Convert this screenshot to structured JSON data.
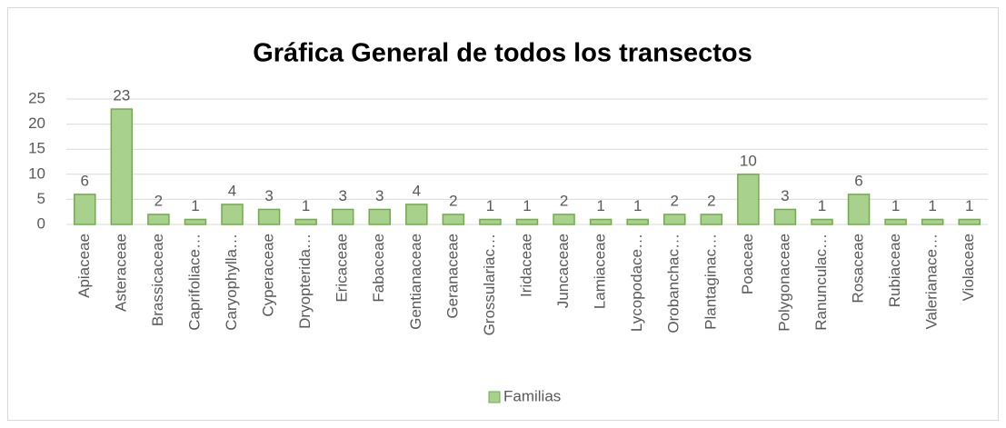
{
  "chart_data": {
    "type": "bar",
    "title": "Gráfica General de todos los transectos",
    "categories": [
      "Apiaceae",
      "Asteraceae",
      "Brassicaceae",
      "Caprifoliace…",
      "Caryophylla…",
      "Cyperaceae",
      "Dryopterida…",
      "Ericaceae",
      "Fabaceae",
      "Gentianaceae",
      "Geranaceae",
      "Grossulariac…",
      "Iridaceae",
      "Juncaceae",
      "Lamiaceae",
      "Lycopodace…",
      "Orobanchac…",
      "Plantaginac…",
      "Poaceae",
      "Polygonaceae",
      "Ranunculac…",
      "Rosaceae",
      "Rubiaceae",
      "Valerianace…",
      "Violaceae"
    ],
    "series": [
      {
        "name": "Familias",
        "color": "#a9d18e",
        "values": [
          6,
          23,
          2,
          1,
          4,
          3,
          1,
          3,
          3,
          4,
          2,
          1,
          1,
          2,
          1,
          1,
          2,
          2,
          10,
          3,
          1,
          6,
          1,
          1,
          1
        ]
      }
    ],
    "ylim": [
      0,
      25
    ],
    "yticks": [
      0,
      5,
      10,
      15,
      20,
      25
    ],
    "grid": true,
    "legend": "bottom"
  }
}
